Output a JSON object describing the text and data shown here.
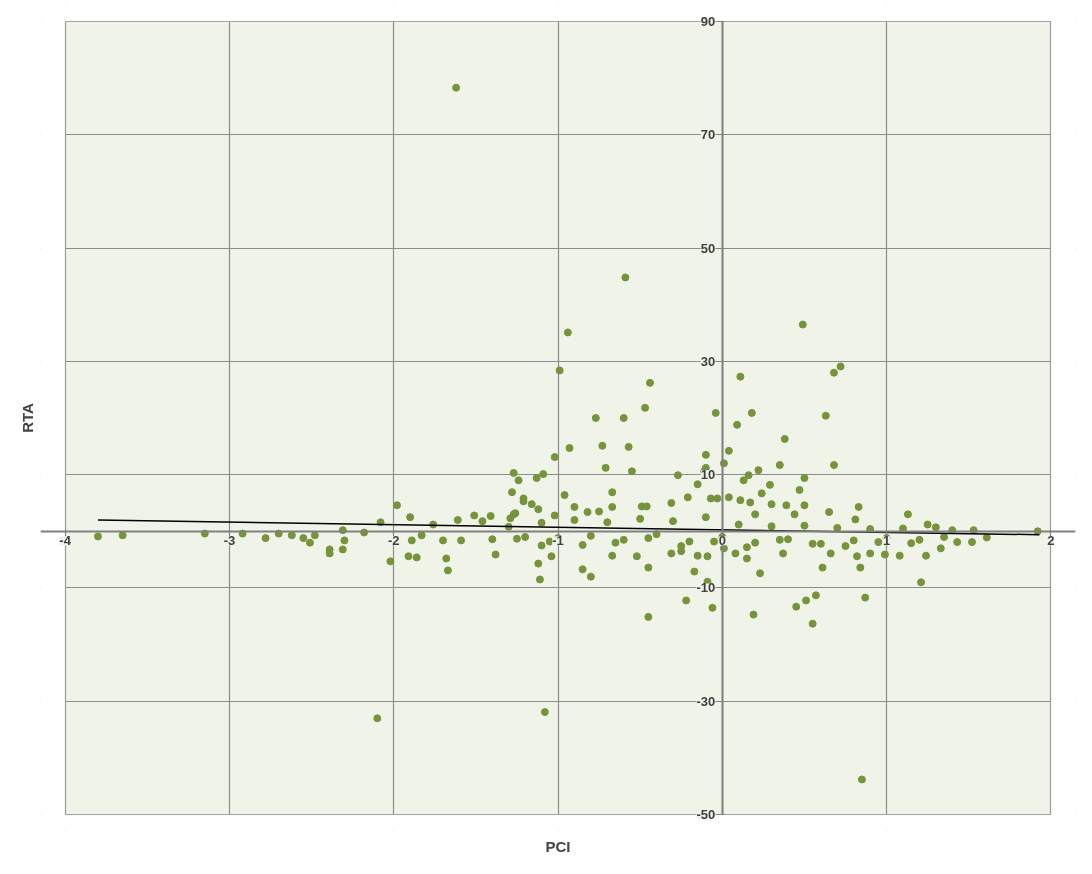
{
  "chart_data": {
    "type": "scatter",
    "xlabel": "PCI",
    "ylabel": "RTA",
    "xlim": [
      -4,
      2
    ],
    "ylim": [
      -50,
      90
    ],
    "xticks": [
      -4,
      -3,
      -2,
      -1,
      0,
      1,
      2
    ],
    "yticks": [
      -50,
      -30,
      -10,
      10,
      30,
      50,
      70,
      90
    ],
    "grid": true,
    "series": [
      {
        "color": "#77933c",
        "marker": "circle",
        "x": [
          -1.62,
          -0.59,
          -0.94,
          -0.99,
          0.49,
          0.72,
          0.68,
          0.11,
          -0.44,
          -0.47,
          -0.6,
          -0.04,
          0.18,
          0.63,
          0.09,
          0.38,
          -0.57,
          -0.93,
          -1.02,
          -0.55,
          0.01,
          0.68,
          0.35,
          0.04,
          0.16,
          -1.13,
          -1.27,
          -1.09,
          0.5,
          -0.11,
          -2.1,
          -1.08,
          0.85,
          -0.45,
          0.55,
          0.51,
          0.57,
          0.87,
          1.21,
          0.19,
          0.45,
          -0.06,
          -0.22,
          0.23,
          -0.45,
          -0.85,
          -0.8,
          -1.11,
          -0.09,
          -1.67,
          -1.68,
          -2.02,
          -1.86,
          -2.39,
          -3.8,
          -3.65,
          -3.15,
          -2.92,
          -2.78,
          -2.7,
          -2.62,
          -2.55,
          -2.51,
          -2.48,
          -2.39,
          -2.31,
          -2.3,
          -2.31,
          -2.18,
          -2.08,
          -1.98,
          -1.9,
          -1.91,
          -1.89,
          -1.83,
          -1.76,
          -1.7,
          -1.61,
          -1.59,
          -1.51,
          -1.46,
          -1.41,
          -1.38,
          -1.4,
          -1.29,
          -1.26,
          -1.28,
          -1.24,
          -1.21,
          -1.21,
          -1.16,
          -1.12,
          -1.27,
          -0.96,
          -1.02,
          -0.9,
          -0.77,
          -0.73,
          -0.71,
          -0.67,
          -0.67,
          -0.82,
          -0.75,
          -0.49,
          -0.46,
          -0.27,
          -0.31,
          -0.15,
          -0.21,
          -0.1,
          -0.1,
          -0.07,
          -0.03,
          0.04,
          0.13,
          0.11,
          0.17,
          0.2,
          0.22,
          0.24,
          0.29,
          0.3,
          0.39,
          0.44,
          0.47,
          0.5,
          0.65,
          0.83,
          0.81,
          1.13,
          1.25,
          1.3,
          1.53,
          1.61,
          1.52,
          1.92,
          -1.1,
          -1.12,
          -1.04,
          -0.67,
          -0.52,
          -0.31,
          -0.25,
          -0.17,
          -0.15,
          -0.09,
          0.01,
          0.08,
          0.15,
          0.37,
          0.61,
          0.66,
          0.82,
          0.84,
          0.9,
          0.99,
          1.08,
          1.24,
          1.33,
          1.43,
          -1.3,
          -1.2,
          -1.1,
          -1.0,
          -0.9,
          -0.8,
          -0.7,
          -0.6,
          -0.5,
          -0.4,
          -0.3,
          -0.2,
          -0.1,
          0.0,
          0.1,
          0.2,
          0.3,
          0.4,
          0.5,
          0.6,
          0.7,
          0.8,
          0.9,
          1.0,
          1.1,
          1.2,
          1.4,
          -1.25,
          -1.05,
          -0.85,
          -0.65,
          -0.45,
          -0.25,
          -0.05,
          0.15,
          0.35,
          0.55,
          0.75,
          0.95,
          1.15,
          1.35
        ],
        "values": [
          78.3,
          44.8,
          35.1,
          28.4,
          36.5,
          29.1,
          28.0,
          27.3,
          26.2,
          21.8,
          20.0,
          20.9,
          20.9,
          20.4,
          18.8,
          16.3,
          14.9,
          14.7,
          13.1,
          10.6,
          12.0,
          11.7,
          11.7,
          14.2,
          9.9,
          9.4,
          10.3,
          10.1,
          9.4,
          10.6,
          -33.0,
          -31.9,
          -43.8,
          -15.1,
          -16.3,
          -12.2,
          -11.3,
          -11.7,
          -9.0,
          -14.7,
          -13.3,
          -13.5,
          -12.2,
          -7.4,
          -6.4,
          -6.7,
          -8.0,
          -8.5,
          -8.9,
          -6.9,
          -4.8,
          -5.3,
          -4.6,
          -3.9,
          -0.9,
          -0.7,
          -0.4,
          -0.4,
          -1.2,
          -0.4,
          -0.7,
          -1.2,
          -2.0,
          -0.7,
          -3.2,
          0.2,
          -1.6,
          -3.2,
          -0.2,
          1.6,
          4.6,
          2.5,
          -4.4,
          -1.6,
          -0.7,
          1.2,
          -1.6,
          2.0,
          -1.6,
          2.8,
          1.8,
          2.7,
          -4.1,
          -1.4,
          2.3,
          3.2,
          6.9,
          9.0,
          5.3,
          5.8,
          4.8,
          3.9,
          3.0,
          6.4,
          2.8,
          4.3,
          20.0,
          15.1,
          11.2,
          6.9,
          4.3,
          3.4,
          3.5,
          4.4,
          4.4,
          9.9,
          5.0,
          8.3,
          6.0,
          13.5,
          11.2,
          5.8,
          5.8,
          6.0,
          9.0,
          5.5,
          5.1,
          3.0,
          10.8,
          6.7,
          8.2,
          4.8,
          4.6,
          3.0,
          7.3,
          4.6,
          3.4,
          4.3,
          2.1,
          3.0,
          1.2,
          0.7,
          0.2,
          -1.1,
          -1.9,
          0.0,
          -2.5,
          -5.7,
          -4.4,
          -4.3,
          -4.4,
          -3.9,
          -3.5,
          -7.1,
          -4.3,
          -4.4,
          -3.0,
          -3.9,
          -4.8,
          -3.9,
          -6.4,
          -3.9,
          -4.4,
          -6.4,
          -3.9,
          -4.1,
          -4.3,
          -4.3,
          -3.0,
          -1.9,
          0.8,
          -1.0,
          1.5,
          -1.2,
          2.0,
          -0.8,
          1.6,
          -1.5,
          2.2,
          -0.5,
          1.8,
          -1.8,
          2.5,
          -1.0,
          1.2,
          -2.0,
          0.9,
          -1.4,
          1.0,
          -2.2,
          0.6,
          -1.6,
          0.4,
          -1.2,
          0.5,
          -1.5,
          0.2,
          -1.3,
          -1.8,
          -2.4,
          -2.0,
          -1.2,
          -2.6,
          -1.8,
          -2.8,
          -1.5,
          -2.2,
          -2.6,
          -1.9,
          -2.1,
          -1.0
        ]
      },
      {
        "type": "line",
        "color": "#000000",
        "x": [
          -3.8,
          1.93
        ],
        "values": [
          2.0,
          -0.6
        ]
      }
    ]
  }
}
